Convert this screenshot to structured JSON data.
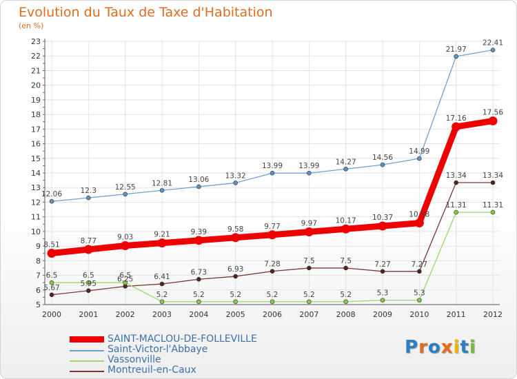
{
  "chart_data": {
    "type": "line",
    "title": "Evolution du Taux de Taxe d'Habitation",
    "subtitle": "(en %)",
    "x": [
      "2000",
      "2001",
      "2002",
      "2003",
      "2004",
      "2005",
      "2006",
      "2007",
      "2008",
      "2009",
      "2010",
      "2011",
      "2012"
    ],
    "ylim": [
      5,
      23
    ],
    "yticks": [
      5,
      6,
      7,
      8,
      9,
      10,
      11,
      12,
      13,
      14,
      15,
      16,
      17,
      18,
      19,
      20,
      21,
      22,
      23
    ],
    "grid": true,
    "legend_position": "bottom-left",
    "series": [
      {
        "name": "SAINT-MACLOU-DE-FOLLEVILLE",
        "color": "#ee0000",
        "marker_fill": "#ee0000",
        "width": 9,
        "marker_r": 6,
        "values": [
          8.51,
          8.77,
          9.03,
          9.21,
          9.39,
          9.58,
          9.77,
          9.97,
          10.17,
          10.37,
          10.58,
          17.16,
          17.56
        ],
        "labels": [
          "8.51",
          "8.77",
          "9.03",
          "9.21",
          "9.39",
          "9.58",
          "9.77",
          "9.97",
          "10.17",
          "10.37",
          "10.58",
          "17.16",
          "17.56"
        ]
      },
      {
        "name": "Saint-Victor-l'Abbaye",
        "color": "#6fa0d2",
        "marker_fill": "#5b93c9",
        "width": 1.3,
        "marker_r": 3,
        "values": [
          12.06,
          12.3,
          12.55,
          12.81,
          13.06,
          13.32,
          13.99,
          13.99,
          14.27,
          14.56,
          14.99,
          21.97,
          22.41
        ],
        "labels": [
          "12.06",
          "12.3",
          "12.55",
          "12.81",
          "13.06",
          "13.32",
          "13.99",
          "13.99",
          "14.27",
          "14.56",
          "14.99",
          "21.97",
          "22.41"
        ]
      },
      {
        "name": "Vassonville",
        "color": "#9ad86a",
        "marker_fill": "#7ecb45",
        "width": 1.3,
        "marker_r": 3,
        "values": [
          6.5,
          6.5,
          6.5,
          5.2,
          5.2,
          5.2,
          5.2,
          5.2,
          5.2,
          5.3,
          5.3,
          11.31,
          11.31
        ],
        "labels": [
          "6.5",
          "6.5",
          "6.5",
          "5.2",
          "5.2",
          "5.2",
          "5.2",
          "5.2",
          "5.2",
          "5.3",
          "5.3",
          "11.31",
          "11.31"
        ]
      },
      {
        "name": "Montreuil-en-Caux",
        "color": "#7a3535",
        "marker_fill": "#5a1f1f",
        "width": 1.3,
        "marker_r": 3,
        "values": [
          5.67,
          5.95,
          6.25,
          6.41,
          6.73,
          6.93,
          7.28,
          7.5,
          7.5,
          7.27,
          7.27,
          13.34,
          13.34
        ],
        "labels": [
          "5.67",
          "5.95",
          "6.25",
          "6.41",
          "6.73",
          "6.93",
          "7.28",
          "7.5",
          "7.5",
          "7.27",
          "7.27",
          "13.34",
          "13.34"
        ]
      }
    ]
  },
  "logo": {
    "letters": [
      "P",
      "r",
      "o",
      "x",
      "i",
      "t",
      "i"
    ],
    "colors": [
      "#2d7ec4",
      "#e46a1c",
      "#2d7ec4",
      "#e46a1c",
      "#f0b400",
      "#2d7ec4",
      "#79b83a"
    ]
  }
}
